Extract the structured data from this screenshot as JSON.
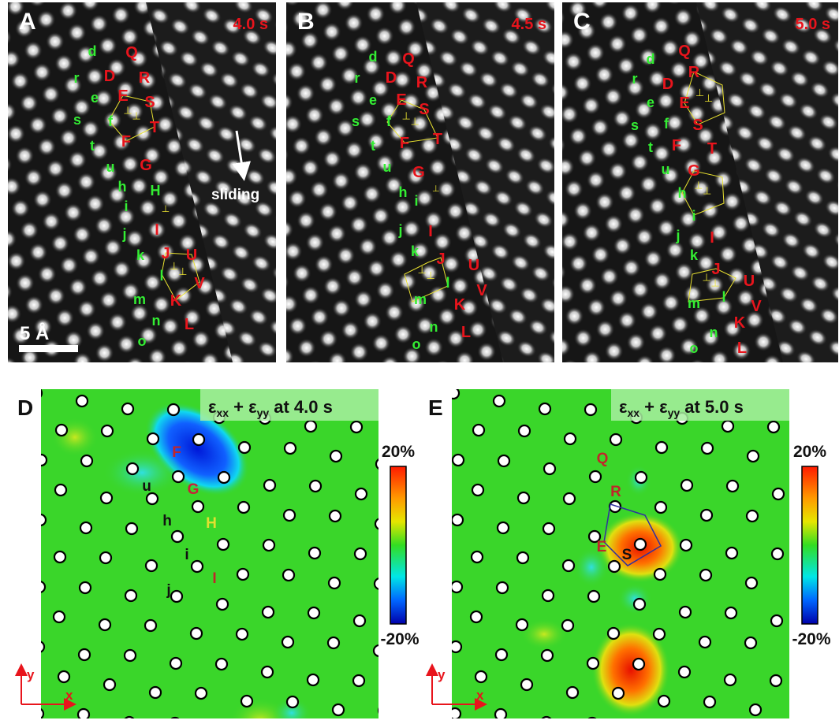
{
  "colors": {
    "red_label": "#e8141c",
    "green_label": "#33ee33",
    "map_green": "#3ad62a",
    "dislocation": "#e8e030"
  },
  "panels": [
    {
      "id": "A",
      "label": "A",
      "time": "4.0 s",
      "arrow_label": "sliding",
      "scale_bar": "5 Å",
      "red": [
        "Q",
        "D",
        "R",
        "E",
        "S",
        "T",
        "F",
        "G",
        "I",
        "J",
        "U",
        "V",
        "K",
        "L"
      ],
      "green": [
        "d",
        "r",
        "e",
        "s",
        "f",
        "t",
        "u",
        "h",
        "H",
        "i",
        "j",
        "k",
        "l",
        "m",
        "n",
        "o"
      ]
    },
    {
      "id": "B",
      "label": "B",
      "time": "4.5 s",
      "red": [
        "Q",
        "D",
        "R",
        "E",
        "S",
        "F",
        "T",
        "G",
        "I",
        "J",
        "U",
        "V",
        "K",
        "L"
      ],
      "green": [
        "d",
        "r",
        "e",
        "s",
        "f",
        "t",
        "u",
        "h",
        "i",
        "j",
        "k",
        "l",
        "m",
        "n",
        "o"
      ]
    },
    {
      "id": "C",
      "label": "C",
      "time": "5.0 s",
      "red": [
        "Q",
        "D",
        "R",
        "E",
        "S",
        "F",
        "T",
        "G",
        "I",
        "J",
        "U",
        "V",
        "K",
        "L"
      ],
      "green": [
        "d",
        "r",
        "e",
        "s",
        "f",
        "t",
        "u",
        "h",
        "i",
        "j",
        "k",
        "l",
        "m",
        "n",
        "o"
      ]
    }
  ],
  "maps": [
    {
      "id": "D",
      "label": "D",
      "title_eps": "ε",
      "sub_xx": "xx",
      "plus": " + ",
      "sub_yy": "yy",
      "title_time": " at 4.0 s",
      "cbar_max": "20%",
      "cbar_min": "-20%",
      "axis_x": "x",
      "axis_y": "y",
      "annotations": [
        "F",
        "u",
        "G",
        "h",
        "H",
        "i",
        "I",
        "j"
      ]
    },
    {
      "id": "E",
      "label": "E",
      "title_eps": "ε",
      "sub_xx": "xx",
      "plus": " + ",
      "sub_yy": "yy",
      "title_time": " at 5.0 s",
      "cbar_max": "20%",
      "cbar_min": "-20%",
      "axis_x": "x",
      "axis_y": "y",
      "annotations": [
        "Q",
        "R",
        "E",
        "S"
      ]
    }
  ]
}
